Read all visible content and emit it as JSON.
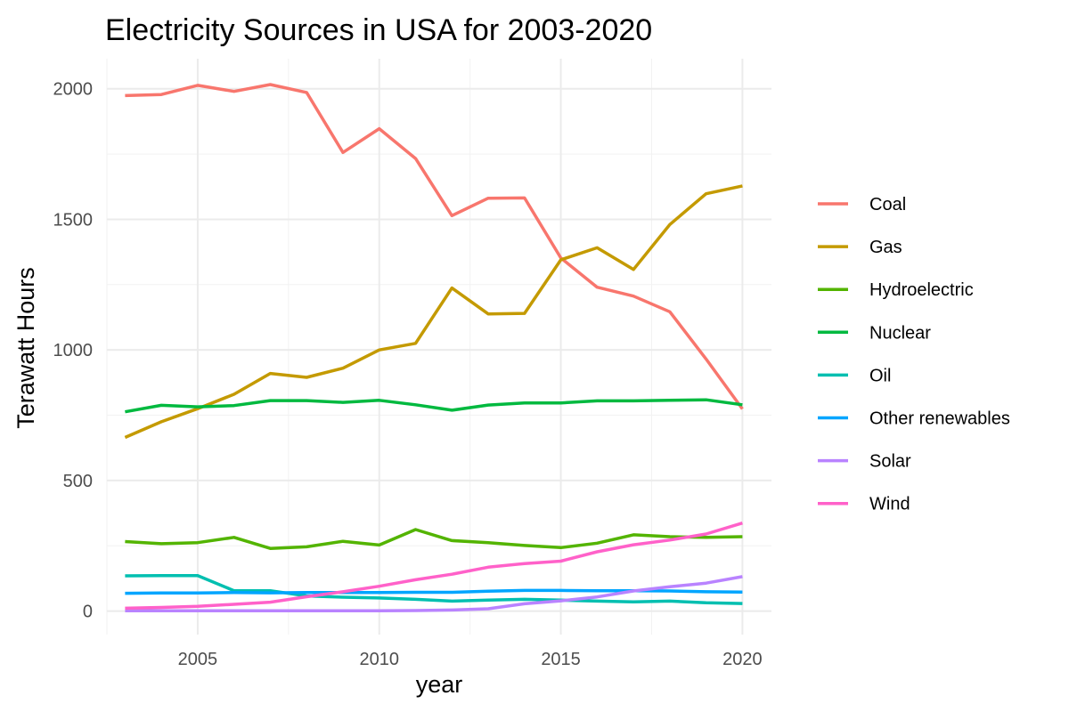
{
  "chart_data": {
    "type": "line",
    "title": "Electricity Sources in USA for 2003-2020",
    "xlabel": "year",
    "ylabel": "Terawatt Hours",
    "xlim": [
      2002.5,
      2020.8
    ],
    "ylim": [
      -90,
      2115
    ],
    "x_ticks": [
      2005,
      2010,
      2015,
      2020
    ],
    "y_ticks": [
      0,
      500,
      1000,
      1500,
      2000
    ],
    "grid": true,
    "legend_position": "right",
    "x": [
      2003,
      2004,
      2005,
      2006,
      2007,
      2008,
      2009,
      2010,
      2011,
      2012,
      2013,
      2014,
      2015,
      2016,
      2017,
      2018,
      2019,
      2020
    ],
    "series": [
      {
        "name": "Coal",
        "color": "#F8766D",
        "values": [
          1974,
          1978,
          2013,
          1990,
          2016,
          1986,
          1756,
          1847,
          1733,
          1514,
          1581,
          1582,
          1352,
          1240,
          1206,
          1146,
          965,
          774
        ]
      },
      {
        "name": "Gas",
        "color": "#C49A00",
        "values": [
          665,
          725,
          775,
          830,
          910,
          895,
          930,
          1000,
          1025,
          1237,
          1138,
          1140,
          1345,
          1391,
          1308,
          1480,
          1598,
          1628
        ]
      },
      {
        "name": "Hydroelectric",
        "color": "#53B400",
        "values": [
          266,
          258,
          262,
          282,
          240,
          246,
          267,
          253,
          312,
          270,
          262,
          251,
          243,
          260,
          292,
          285,
          282,
          285
        ]
      },
      {
        "name": "Nuclear",
        "color": "#00B93F",
        "values": [
          763,
          788,
          782,
          787,
          806,
          806,
          799,
          807,
          790,
          769,
          789,
          797,
          797,
          805,
          805,
          807,
          809,
          790
        ]
      },
      {
        "name": "Oil",
        "color": "#00BFB0",
        "values": [
          135,
          136,
          136,
          78,
          78,
          58,
          53,
          50,
          45,
          38,
          42,
          45,
          42,
          38,
          35,
          38,
          32,
          29
        ]
      },
      {
        "name": "Other renewables",
        "color": "#00A5FF",
        "values": [
          68,
          69,
          69,
          71,
          70,
          71,
          71,
          71,
          72,
          72,
          76,
          79,
          79,
          78,
          78,
          77,
          74,
          73
        ]
      },
      {
        "name": "Solar",
        "color": "#B983FF",
        "values": [
          1,
          1,
          1,
          1,
          1,
          1,
          1,
          1,
          2,
          4,
          9,
          28,
          39,
          54,
          77,
          93,
          107,
          132
        ]
      },
      {
        "name": "Wind",
        "color": "#FF61C9",
        "values": [
          11,
          14,
          18,
          26,
          34,
          55,
          74,
          95,
          120,
          141,
          168,
          182,
          191,
          227,
          254,
          272,
          295,
          337
        ]
      }
    ]
  }
}
